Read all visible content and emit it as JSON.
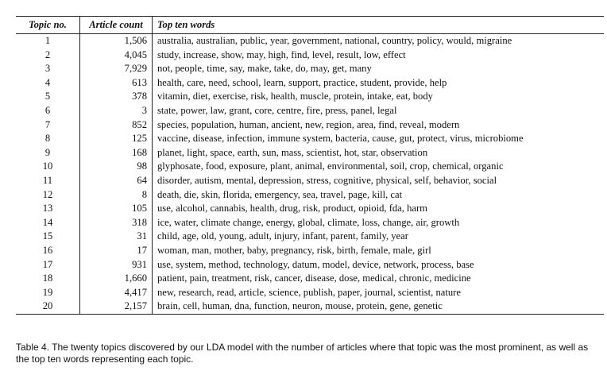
{
  "table": {
    "headers": [
      "Topic no.",
      "Article count",
      "Top ten words"
    ],
    "rows": [
      [
        "1",
        "1,506",
        "australia, australian, public, year, government, national, country, policy, would, migraine"
      ],
      [
        "2",
        "4,045",
        "study, increase, show, may, high, find, level, result, low, effect"
      ],
      [
        "3",
        "7,929",
        "not, people, time, say, make, take, do, may, get, many"
      ],
      [
        "4",
        "613",
        "health, care, need, school, learn, support, practice, student, provide, help"
      ],
      [
        "5",
        "378",
        "vitamin, diet, exercise, risk, health, muscle, protein, intake, eat, body"
      ],
      [
        "6",
        "3",
        "state, power, law, grant, core, centre, fire, press, panel, legal"
      ],
      [
        "7",
        "852",
        "species, population, human, ancient, new, region, area, find, reveal, modern"
      ],
      [
        "8",
        "125",
        "vaccine, disease, infection, immune system, bacteria, cause, gut, protect, virus, microbiome"
      ],
      [
        "9",
        "168",
        "planet, light, space, earth, sun, mass, scientist, hot, star, observation"
      ],
      [
        "10",
        "98",
        "glyphosate, food, exposure, plant, animal, environmental, soil, crop, chemical, organic"
      ],
      [
        "11",
        "64",
        "disorder, autism, mental, depression, stress, cognitive, physical, self, behavior, social"
      ],
      [
        "12",
        "8",
        "death, die, skin, florida, emergency, sea, travel, page, kill, cat"
      ],
      [
        "13",
        "105",
        "use, alcohol, cannabis, health, drug, risk, product, opioid, fda, harm"
      ],
      [
        "14",
        "318",
        "ice, water, climate change, energy, global, climate, loss, change, air, growth"
      ],
      [
        "15",
        "31",
        "child, age, old, young, adult, injury, infant, parent, family, year"
      ],
      [
        "16",
        "17",
        "woman, man, mother, baby, pregnancy, risk, birth, female, male, girl"
      ],
      [
        "17",
        "931",
        "use, system, method, technology, datum, model, device, network, process, base"
      ],
      [
        "18",
        "1,660",
        "patient, pain, treatment, risk, cancer, disease, dose, medical, chronic, medicine"
      ],
      [
        "19",
        "4,417",
        "new, research, read, article, science, publish, paper, journal, scientist, nature"
      ],
      [
        "20",
        "2,157",
        "brain, cell, human, dna, function, neuron, mouse, protein, gene, genetic"
      ]
    ]
  },
  "caption": "Table 4.  The twenty topics discovered by our LDA model with the number of articles where that topic was the most prominent, as well as the top ten words representing each topic."
}
